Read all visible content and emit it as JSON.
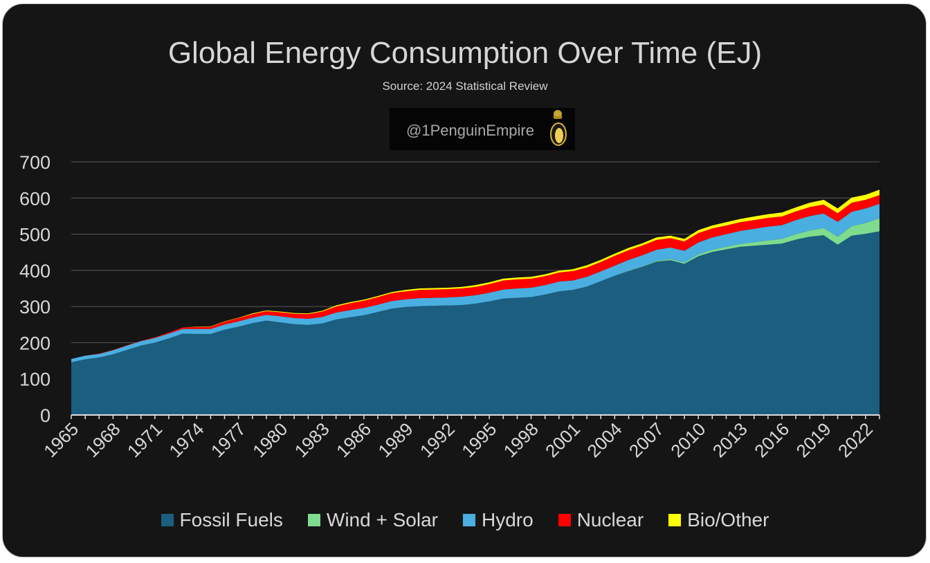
{
  "chart_data": {
    "type": "area",
    "stacked": true,
    "title": "Global Energy Consumption Over Time (EJ)",
    "subtitle": "Source: 2024 Statistical Review",
    "watermark": "@1PenguinEmpire",
    "ylim": [
      0,
      700
    ],
    "yticks": [
      0,
      100,
      200,
      300,
      400,
      500,
      600,
      700
    ],
    "xlabels": [
      "1965",
      "1968",
      "1971",
      "1974",
      "1977",
      "1980",
      "1983",
      "1986",
      "1989",
      "1992",
      "1995",
      "1998",
      "2001",
      "2004",
      "2007",
      "2010",
      "2013",
      "2016",
      "2019",
      "2022"
    ],
    "x": [
      1965,
      1966,
      1967,
      1968,
      1969,
      1970,
      1971,
      1972,
      1973,
      1974,
      1975,
      1976,
      1977,
      1978,
      1979,
      1980,
      1981,
      1982,
      1983,
      1984,
      1985,
      1986,
      1987,
      1988,
      1989,
      1990,
      1991,
      1992,
      1993,
      1994,
      1995,
      1996,
      1997,
      1998,
      1999,
      2000,
      2001,
      2002,
      2003,
      2004,
      2005,
      2006,
      2007,
      2008,
      2009,
      2010,
      2011,
      2012,
      2013,
      2014,
      2015,
      2016,
      2017,
      2018,
      2019,
      2020,
      2021,
      2022,
      2023
    ],
    "grid": true,
    "legend_position": "bottom",
    "series": [
      {
        "name": "Fossil Fuels",
        "color": "#1b5e80",
        "values": [
          146,
          154,
          159,
          168,
          180,
          192,
          200,
          212,
          225,
          224,
          224,
          236,
          244,
          254,
          261,
          256,
          251,
          249,
          253,
          264,
          270,
          276,
          285,
          294,
          299,
          301,
          302,
          303,
          304,
          308,
          314,
          322,
          324,
          326,
          333,
          342,
          346,
          355,
          370,
          385,
          398,
          410,
          424,
          428,
          418,
          439,
          451,
          458,
          465,
          468,
          471,
          474,
          485,
          493,
          497,
          471,
          496,
          501,
          508
        ]
      },
      {
        "name": "Wind + Solar",
        "color": "#7ddc8e",
        "values": [
          0,
          0,
          0,
          0,
          0,
          0,
          0,
          0,
          0,
          0,
          0,
          0,
          0,
          0,
          0,
          0,
          0,
          0,
          0,
          0,
          0,
          0,
          0,
          0,
          0,
          0,
          0,
          0,
          0,
          0,
          0,
          0,
          0,
          0,
          0,
          0,
          0,
          0,
          0,
          0,
          1,
          1,
          2,
          3,
          4,
          5,
          6,
          7,
          8,
          10,
          12,
          13,
          15,
          17,
          20,
          22,
          26,
          30,
          36
        ]
      },
      {
        "name": "Hydro",
        "color": "#4aaee0",
        "values": [
          9,
          10,
          10,
          11,
          12,
          12,
          13,
          13,
          13,
          14,
          14,
          14,
          15,
          15,
          16,
          17,
          17,
          17,
          18,
          19,
          20,
          20,
          20,
          21,
          21,
          22,
          22,
          22,
          23,
          23,
          24,
          25,
          26,
          26,
          26,
          27,
          26,
          27,
          27,
          28,
          30,
          31,
          31,
          32,
          32,
          33,
          34,
          35,
          36,
          37,
          38,
          38,
          39,
          40,
          40,
          41,
          40,
          40,
          40
        ]
      },
      {
        "name": "Nuclear",
        "color": "#ff0000",
        "values": [
          0,
          0,
          1,
          1,
          1,
          1,
          2,
          3,
          4,
          5,
          6,
          8,
          9,
          10,
          10,
          11,
          12,
          13,
          15,
          17,
          19,
          20,
          21,
          22,
          22,
          23,
          23,
          23,
          23,
          23,
          24,
          25,
          25,
          25,
          25,
          25,
          26,
          26,
          26,
          27,
          27,
          27,
          27,
          26,
          26,
          26,
          25,
          24,
          24,
          24,
          24,
          24,
          24,
          25,
          25,
          24,
          25,
          24,
          24
        ]
      },
      {
        "name": "Bio/Other",
        "color": "#ffff00",
        "values": [
          0,
          0,
          0,
          0,
          0,
          0,
          0,
          0,
          0,
          1,
          1,
          1,
          1,
          2,
          2,
          2,
          2,
          2,
          2,
          3,
          3,
          3,
          3,
          3,
          4,
          4,
          4,
          4,
          4,
          5,
          5,
          5,
          5,
          5,
          5,
          5,
          5,
          6,
          6,
          6,
          6,
          6,
          7,
          7,
          7,
          8,
          8,
          9,
          9,
          10,
          10,
          11,
          11,
          12,
          13,
          13,
          14,
          14,
          15
        ]
      }
    ]
  }
}
